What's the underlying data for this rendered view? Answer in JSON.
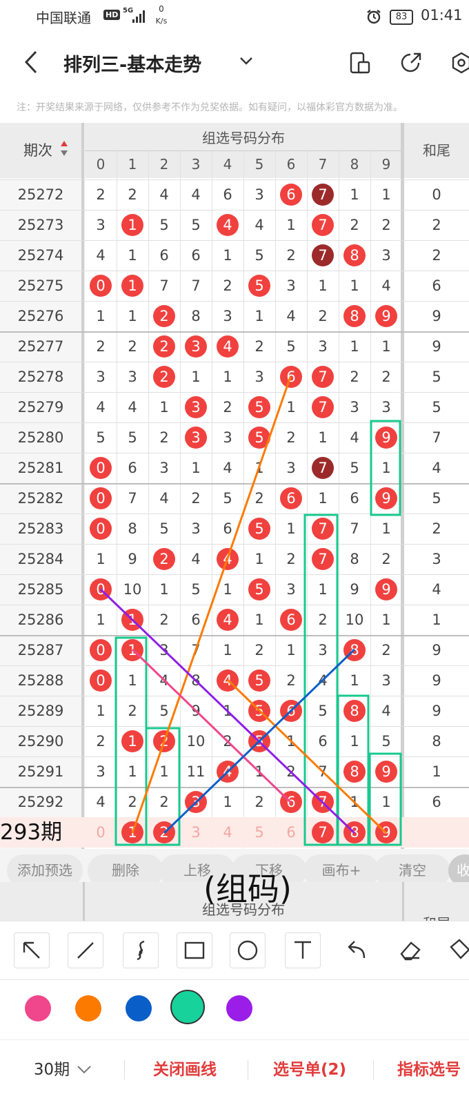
{
  "status_bar": {
    "carrier": "中国联通",
    "hd": "HD",
    "network": "5G",
    "speed": "0",
    "speed_unit": "K/s",
    "battery": "83",
    "time": "01:41"
  },
  "header": {
    "title": "排列三-基本走势"
  },
  "notice": "注：开奖结果来源于网络，仅供参考不作为兑奖依据。如有疑问，以福体彩官方数据为准。",
  "table": {
    "issue_header": "期次",
    "group_header": "组选号码分布",
    "tail_header": "和尾",
    "digits": [
      0,
      1,
      2,
      3,
      4,
      5,
      6,
      7,
      8,
      9
    ],
    "rows": [
      {
        "issue": "25272",
        "cells": [
          2,
          2,
          4,
          4,
          6,
          3,
          6,
          7,
          1,
          1
        ],
        "hits": [
          6,
          7
        ],
        "dark": [
          7
        ],
        "tail": 0
      },
      {
        "issue": "25273",
        "cells": [
          3,
          1,
          5,
          5,
          4,
          4,
          1,
          7,
          2,
          2
        ],
        "hits": [
          1,
          4,
          7
        ],
        "dark": [],
        "tail": 2
      },
      {
        "issue": "25274",
        "cells": [
          4,
          1,
          6,
          6,
          1,
          5,
          2,
          7,
          8,
          3
        ],
        "hits": [
          7,
          8
        ],
        "dark": [
          7
        ],
        "tail": 2
      },
      {
        "issue": "25275",
        "cells": [
          0,
          1,
          7,
          7,
          2,
          5,
          3,
          1,
          1,
          4
        ],
        "hits": [
          0,
          1,
          5
        ],
        "dark": [],
        "tail": 6
      },
      {
        "issue": "25276",
        "cells": [
          1,
          1,
          2,
          8,
          3,
          1,
          4,
          2,
          8,
          9
        ],
        "hits": [
          2,
          8,
          9
        ],
        "dark": [],
        "tail": 9
      },
      {
        "issue": "25277",
        "cells": [
          2,
          2,
          2,
          3,
          4,
          2,
          5,
          3,
          1,
          1
        ],
        "hits": [
          2,
          3,
          4
        ],
        "dark": [],
        "tail": 9
      },
      {
        "issue": "25278",
        "cells": [
          3,
          3,
          2,
          1,
          1,
          3,
          6,
          7,
          2,
          2
        ],
        "hits": [
          2,
          6,
          7
        ],
        "dark": [],
        "tail": 5
      },
      {
        "issue": "25279",
        "cells": [
          4,
          4,
          1,
          3,
          2,
          5,
          1,
          7,
          3,
          3
        ],
        "hits": [
          3,
          5,
          7
        ],
        "dark": [],
        "tail": 5
      },
      {
        "issue": "25280",
        "cells": [
          5,
          5,
          2,
          3,
          3,
          5,
          2,
          1,
          4,
          9
        ],
        "hits": [
          3,
          5,
          9
        ],
        "dark": [],
        "tail": 7
      },
      {
        "issue": "25281",
        "cells": [
          0,
          6,
          3,
          1,
          4,
          1,
          3,
          7,
          5,
          1
        ],
        "hits": [
          0,
          7
        ],
        "dark": [
          7
        ],
        "tail": 4
      },
      {
        "issue": "25282",
        "cells": [
          0,
          7,
          4,
          2,
          5,
          2,
          6,
          1,
          6,
          9
        ],
        "hits": [
          0,
          6,
          9
        ],
        "dark": [],
        "tail": 5
      },
      {
        "issue": "25283",
        "cells": [
          0,
          8,
          5,
          3,
          6,
          5,
          1,
          7,
          7,
          1
        ],
        "hits": [
          0,
          5,
          7
        ],
        "dark": [],
        "tail": 2
      },
      {
        "issue": "25284",
        "cells": [
          1,
          9,
          2,
          4,
          4,
          1,
          2,
          7,
          8,
          2
        ],
        "hits": [
          2,
          4,
          7
        ],
        "dark": [],
        "tail": 3
      },
      {
        "issue": "25285",
        "cells": [
          0,
          10,
          1,
          5,
          1,
          5,
          3,
          1,
          9,
          9
        ],
        "hits": [
          0,
          5,
          9
        ],
        "dark": [],
        "tail": 4
      },
      {
        "issue": "25286",
        "cells": [
          1,
          1,
          2,
          6,
          4,
          1,
          6,
          2,
          10,
          1
        ],
        "hits": [
          1,
          4,
          6
        ],
        "dark": [],
        "tail": 1
      },
      {
        "issue": "25287",
        "cells": [
          0,
          1,
          3,
          7,
          1,
          2,
          1,
          3,
          8,
          2
        ],
        "hits": [
          0,
          1,
          8
        ],
        "dark": [],
        "tail": 9
      },
      {
        "issue": "25288",
        "cells": [
          0,
          1,
          4,
          8,
          4,
          5,
          2,
          4,
          1,
          3
        ],
        "hits": [
          0,
          4,
          5
        ],
        "dark": [],
        "tail": 9
      },
      {
        "issue": "25289",
        "cells": [
          1,
          2,
          5,
          9,
          1,
          5,
          6,
          5,
          8,
          4
        ],
        "hits": [
          5,
          6,
          8
        ],
        "dark": [],
        "tail": 9
      },
      {
        "issue": "25290",
        "cells": [
          2,
          1,
          2,
          10,
          2,
          5,
          1,
          6,
          1,
          5
        ],
        "hits": [
          1,
          2,
          5
        ],
        "dark": [],
        "tail": 8
      },
      {
        "issue": "25291",
        "cells": [
          3,
          1,
          1,
          11,
          4,
          1,
          2,
          7,
          8,
          9
        ],
        "hits": [
          4,
          8,
          9
        ],
        "dark": [],
        "tail": 1
      },
      {
        "issue": "25292",
        "cells": [
          4,
          2,
          2,
          3,
          1,
          2,
          6,
          7,
          1,
          1
        ],
        "hits": [
          3,
          6,
          7
        ],
        "dark": [],
        "tail": 6
      }
    ],
    "next": {
      "label": "293期",
      "cells": [
        0,
        1,
        2,
        3,
        4,
        5,
        6,
        7,
        8,
        9
      ],
      "hits": [
        1,
        2,
        7,
        8,
        9
      ]
    }
  },
  "toolbar": [
    "添加预选",
    "删除",
    "上移",
    "下移",
    "画布+",
    "清空",
    "收"
  ],
  "overlay_text": "(组码)",
  "ghost_header": {
    "group_header": "组选号码分布",
    "tail_header": "和尾"
  },
  "bottom": {
    "period": "30期",
    "close": "关闭画线",
    "list": "选号单(2)",
    "indicator": "指标选号"
  }
}
